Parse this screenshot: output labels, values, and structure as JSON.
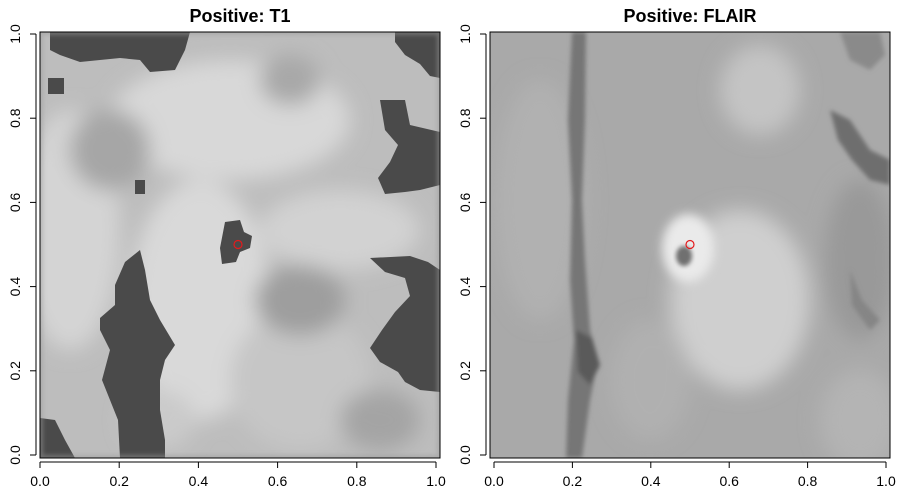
{
  "panels": [
    {
      "title": "Positive: T1",
      "xlim": [
        0,
        1
      ],
      "ylim": [
        0,
        1
      ],
      "x_ticks": [
        "0.0",
        "0.2",
        "0.4",
        "0.6",
        "0.8",
        "1.0"
      ],
      "y_ticks": [
        "0.0",
        "0.2",
        "0.4",
        "0.6",
        "0.8",
        "1.0"
      ],
      "marker": {
        "x": 0.5,
        "y": 0.5,
        "color": "#e41a1c"
      }
    },
    {
      "title": "Positive: FLAIR",
      "xlim": [
        0,
        1
      ],
      "ylim": [
        0,
        1
      ],
      "x_ticks": [
        "0.0",
        "0.2",
        "0.4",
        "0.6",
        "0.8",
        "1.0"
      ],
      "y_ticks": [
        "0.0",
        "0.2",
        "0.4",
        "0.6",
        "0.8",
        "1.0"
      ],
      "marker": {
        "x": 0.5,
        "y": 0.5,
        "color": "#e41a1c"
      }
    }
  ],
  "colors": {
    "t1_dark": "#4a4a4a",
    "t1_bright": "#dcdcdc",
    "flair_base": "#a9a9a9",
    "flair_bright": "#e6e6e6",
    "flair_dark": "#6e6e6e"
  }
}
